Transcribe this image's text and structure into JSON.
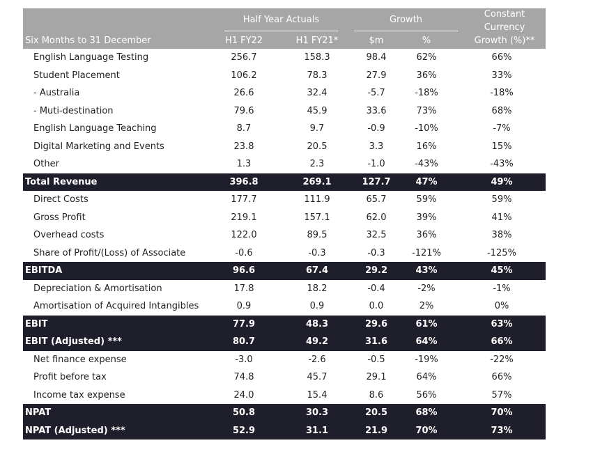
{
  "header": {
    "period": "Six Months to 31 December",
    "group_actuals": "Half Year Actuals",
    "group_growth": "Growth",
    "cc1": "Constant",
    "cc2": "Currency",
    "cc3": "Growth (%)**",
    "col_fy22": "H1 FY22",
    "col_fy21": "H1 FY21*",
    "col_m": "$m",
    "col_pct": "%"
  },
  "rows": [
    {
      "label": "English Language Testing",
      "v": [
        "256.7",
        "158.3",
        "98.4",
        "62%",
        "66%"
      ]
    },
    {
      "label": "Student Placement",
      "v": [
        "106.2",
        "78.3",
        "27.9",
        "36%",
        "33%"
      ]
    },
    {
      "label": " - Australia",
      "v": [
        "26.6",
        "32.4",
        "-5.7",
        "-18%",
        "-18%"
      ]
    },
    {
      "label": " - Muti-destination",
      "v": [
        "79.6",
        "45.9",
        "33.6",
        "73%",
        "68%"
      ]
    },
    {
      "label": "English Language Teaching",
      "v": [
        "8.7",
        "9.7",
        "-0.9",
        "-10%",
        "-7%"
      ]
    },
    {
      "label": "Digital Marketing and Events",
      "v": [
        "23.8",
        "20.5",
        "3.3",
        "16%",
        "15%"
      ]
    },
    {
      "label": "Other",
      "v": [
        "1.3",
        "2.3",
        "-1.0",
        "-43%",
        "-43%"
      ]
    },
    {
      "label": "Total Revenue",
      "dark": true,
      "v": [
        "396.8",
        "269.1",
        "127.7",
        "47%",
        "49%"
      ]
    },
    {
      "label": "Direct Costs",
      "v": [
        "177.7",
        "111.9",
        "65.7",
        "59%",
        "59%"
      ]
    },
    {
      "label": "Gross Profit",
      "v": [
        "219.1",
        "157.1",
        "62.0",
        "39%",
        "41%"
      ]
    },
    {
      "label": "Overhead costs",
      "v": [
        "122.0",
        "89.5",
        "32.5",
        "36%",
        "38%"
      ]
    },
    {
      "label": "Share of Profit/(Loss) of Associate",
      "v": [
        "-0.6",
        "-0.3",
        "-0.3",
        "-121%",
        "-125%"
      ]
    },
    {
      "label": "EBITDA",
      "dark": true,
      "v": [
        "96.6",
        "67.4",
        "29.2",
        "43%",
        "45%"
      ]
    },
    {
      "label": "Depreciation & Amortisation",
      "v": [
        "17.8",
        "18.2",
        "-0.4",
        "-2%",
        "-1%"
      ]
    },
    {
      "label": "Amortisation of Acquired Intangibles",
      "v": [
        "0.9",
        "0.9",
        "0.0",
        "2%",
        "0%"
      ]
    },
    {
      "label": "EBIT",
      "dark": true,
      "v": [
        "77.9",
        "48.3",
        "29.6",
        "61%",
        "63%"
      ]
    },
    {
      "label": "EBIT (Adjusted) ***",
      "dark": true,
      "v": [
        "80.7",
        "49.2",
        "31.6",
        "64%",
        "66%"
      ]
    },
    {
      "label": "Net finance expense",
      "v": [
        "-3.0",
        "-2.6",
        "-0.5",
        "-19%",
        "-22%"
      ]
    },
    {
      "label": "Profit before tax",
      "v": [
        "74.8",
        "45.7",
        "29.1",
        "64%",
        "66%"
      ]
    },
    {
      "label": "Income tax expense",
      "v": [
        "24.0",
        "15.4",
        "8.6",
        "56%",
        "57%"
      ]
    },
    {
      "label": "NPAT",
      "dark": true,
      "v": [
        "50.8",
        "30.3",
        "20.5",
        "68%",
        "70%"
      ]
    },
    {
      "label": "NPAT (Adjusted) ***",
      "dark": true,
      "v": [
        "52.9",
        "31.1",
        "21.9",
        "70%",
        "73%"
      ]
    }
  ]
}
